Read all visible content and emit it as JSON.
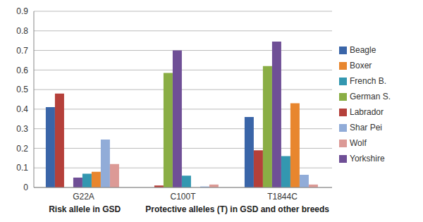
{
  "chart_data": {
    "type": "bar",
    "categories": [
      "G22A",
      "C100T",
      "T1844C"
    ],
    "series": [
      {
        "name": "Beagle",
        "color": "#3a65a8",
        "values": [
          0.41,
          0,
          0.36
        ]
      },
      {
        "name": "Labrador",
        "color": "#b5403a",
        "values": [
          0.48,
          0.01,
          0.19
        ]
      },
      {
        "name": "German S.",
        "color": "#8aae45",
        "values": [
          0,
          0.585,
          0.62
        ]
      },
      {
        "name": "Yorkshire",
        "color": "#6f4f96",
        "values": [
          0.05,
          0.7,
          0.745
        ]
      },
      {
        "name": "French B.",
        "color": "#3397b0",
        "values": [
          0.07,
          0.06,
          0.16
        ]
      },
      {
        "name": "Boxer",
        "color": "#e8862e",
        "values": [
          0.08,
          0,
          0.43
        ]
      },
      {
        "name": "Shar Pei",
        "color": "#91acd8",
        "values": [
          0.245,
          0.005,
          0.065
        ]
      },
      {
        "name": "Wolf",
        "color": "#dc9a96",
        "values": [
          0.12,
          0.015,
          0.015
        ]
      }
    ],
    "annotations": [
      "Risk allele in GSD",
      "Protective alleles (T) in GSD and other breeds"
    ],
    "ylim": [
      0,
      0.9
    ],
    "yticks": [
      0,
      0.1,
      0.2,
      0.3,
      0.4,
      0.5,
      0.6,
      0.7,
      0.8,
      0.9
    ],
    "grid": true,
    "legend": "right"
  }
}
